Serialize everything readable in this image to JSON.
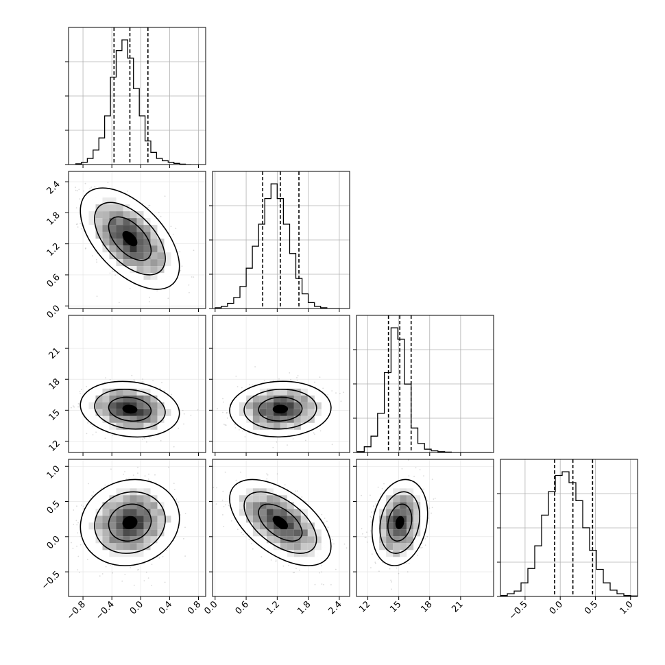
{
  "chart_data": {
    "type": "corner",
    "grid": true,
    "parameters": [
      {
        "index": 0,
        "range": [
          -1.0,
          0.9
        ],
        "ticks": [
          "−0.8",
          "−0.4",
          "0.0",
          "0.4",
          "0.8"
        ],
        "tick_values": [
          -0.8,
          -0.4,
          0.0,
          0.4,
          0.8
        ],
        "quantiles": [
          -0.37,
          -0.15,
          0.1
        ],
        "histogram": {
          "bin_start": -0.9,
          "bin_width": 0.08,
          "counts": [
            2,
            6,
            16,
            38,
            70,
            128,
            230,
            300,
            328,
            280,
            200,
            128,
            62,
            32,
            16,
            10,
            6,
            3,
            1,
            0
          ]
        }
      },
      {
        "index": 1,
        "range": [
          -0.05,
          2.6
        ],
        "ticks": [
          "0.0",
          "0.6",
          "1.2",
          "1.8",
          "2.4"
        ],
        "tick_values": [
          0.0,
          0.6,
          1.2,
          1.8,
          2.4
        ],
        "quantiles": [
          0.92,
          1.26,
          1.62
        ],
        "histogram": {
          "bin_start": 0.0,
          "bin_width": 0.12,
          "counts": [
            2,
            6,
            14,
            30,
            60,
            110,
            170,
            230,
            300,
            340,
            300,
            230,
            150,
            82,
            40,
            16,
            6,
            2,
            0,
            0
          ]
        }
      },
      {
        "index": 2,
        "range": [
          10.9,
          24.2
        ],
        "ticks": [
          "12",
          "15",
          "18",
          "21"
        ],
        "tick_values": [
          12,
          15,
          18,
          21
        ],
        "quantiles": [
          14.0,
          15.1,
          16.2
        ],
        "histogram": {
          "bin_start": 11.0,
          "bin_width": 0.65,
          "counts": [
            2,
            14,
            40,
            96,
            196,
            306,
            278,
            168,
            60,
            22,
            8,
            4,
            2,
            1,
            0,
            0,
            0,
            0,
            0,
            0
          ]
        }
      },
      {
        "index": 3,
        "range": [
          -0.85,
          1.1
        ],
        "ticks": [
          "−0.5",
          "0.0",
          "0.5",
          "1.0"
        ],
        "tick_values": [
          -0.5,
          0.0,
          0.5,
          1.0
        ],
        "quantiles": [
          -0.08,
          0.18,
          0.46
        ],
        "histogram": {
          "bin_start": -0.85,
          "bin_width": 0.0975,
          "counts": [
            2,
            6,
            12,
            30,
            62,
            112,
            180,
            232,
            268,
            276,
            252,
            212,
            152,
            102,
            60,
            30,
            14,
            6,
            2,
            1
          ]
        }
      }
    ],
    "pair_panels": [
      {
        "row": 1,
        "col": 0,
        "center": [
          -0.15,
          1.3
        ],
        "sd": [
          0.28,
          0.4
        ],
        "rho": -0.55
      },
      {
        "row": 2,
        "col": 0,
        "center": [
          -0.15,
          15.1
        ],
        "sd": [
          0.28,
          1.1
        ],
        "rho": -0.15
      },
      {
        "row": 2,
        "col": 1,
        "center": [
          1.26,
          15.1
        ],
        "sd": [
          0.4,
          1.1
        ],
        "rho": 0.05
      },
      {
        "row": 3,
        "col": 0,
        "center": [
          -0.15,
          0.2
        ],
        "sd": [
          0.28,
          0.25
        ],
        "rho": 0.1
      },
      {
        "row": 3,
        "col": 1,
        "center": [
          1.26,
          0.2
        ],
        "sd": [
          0.4,
          0.25
        ],
        "rho": -0.55
      },
      {
        "row": 3,
        "col": 2,
        "center": [
          15.1,
          0.2
        ],
        "sd": [
          1.1,
          0.25
        ],
        "rho": 0.2
      }
    ]
  }
}
